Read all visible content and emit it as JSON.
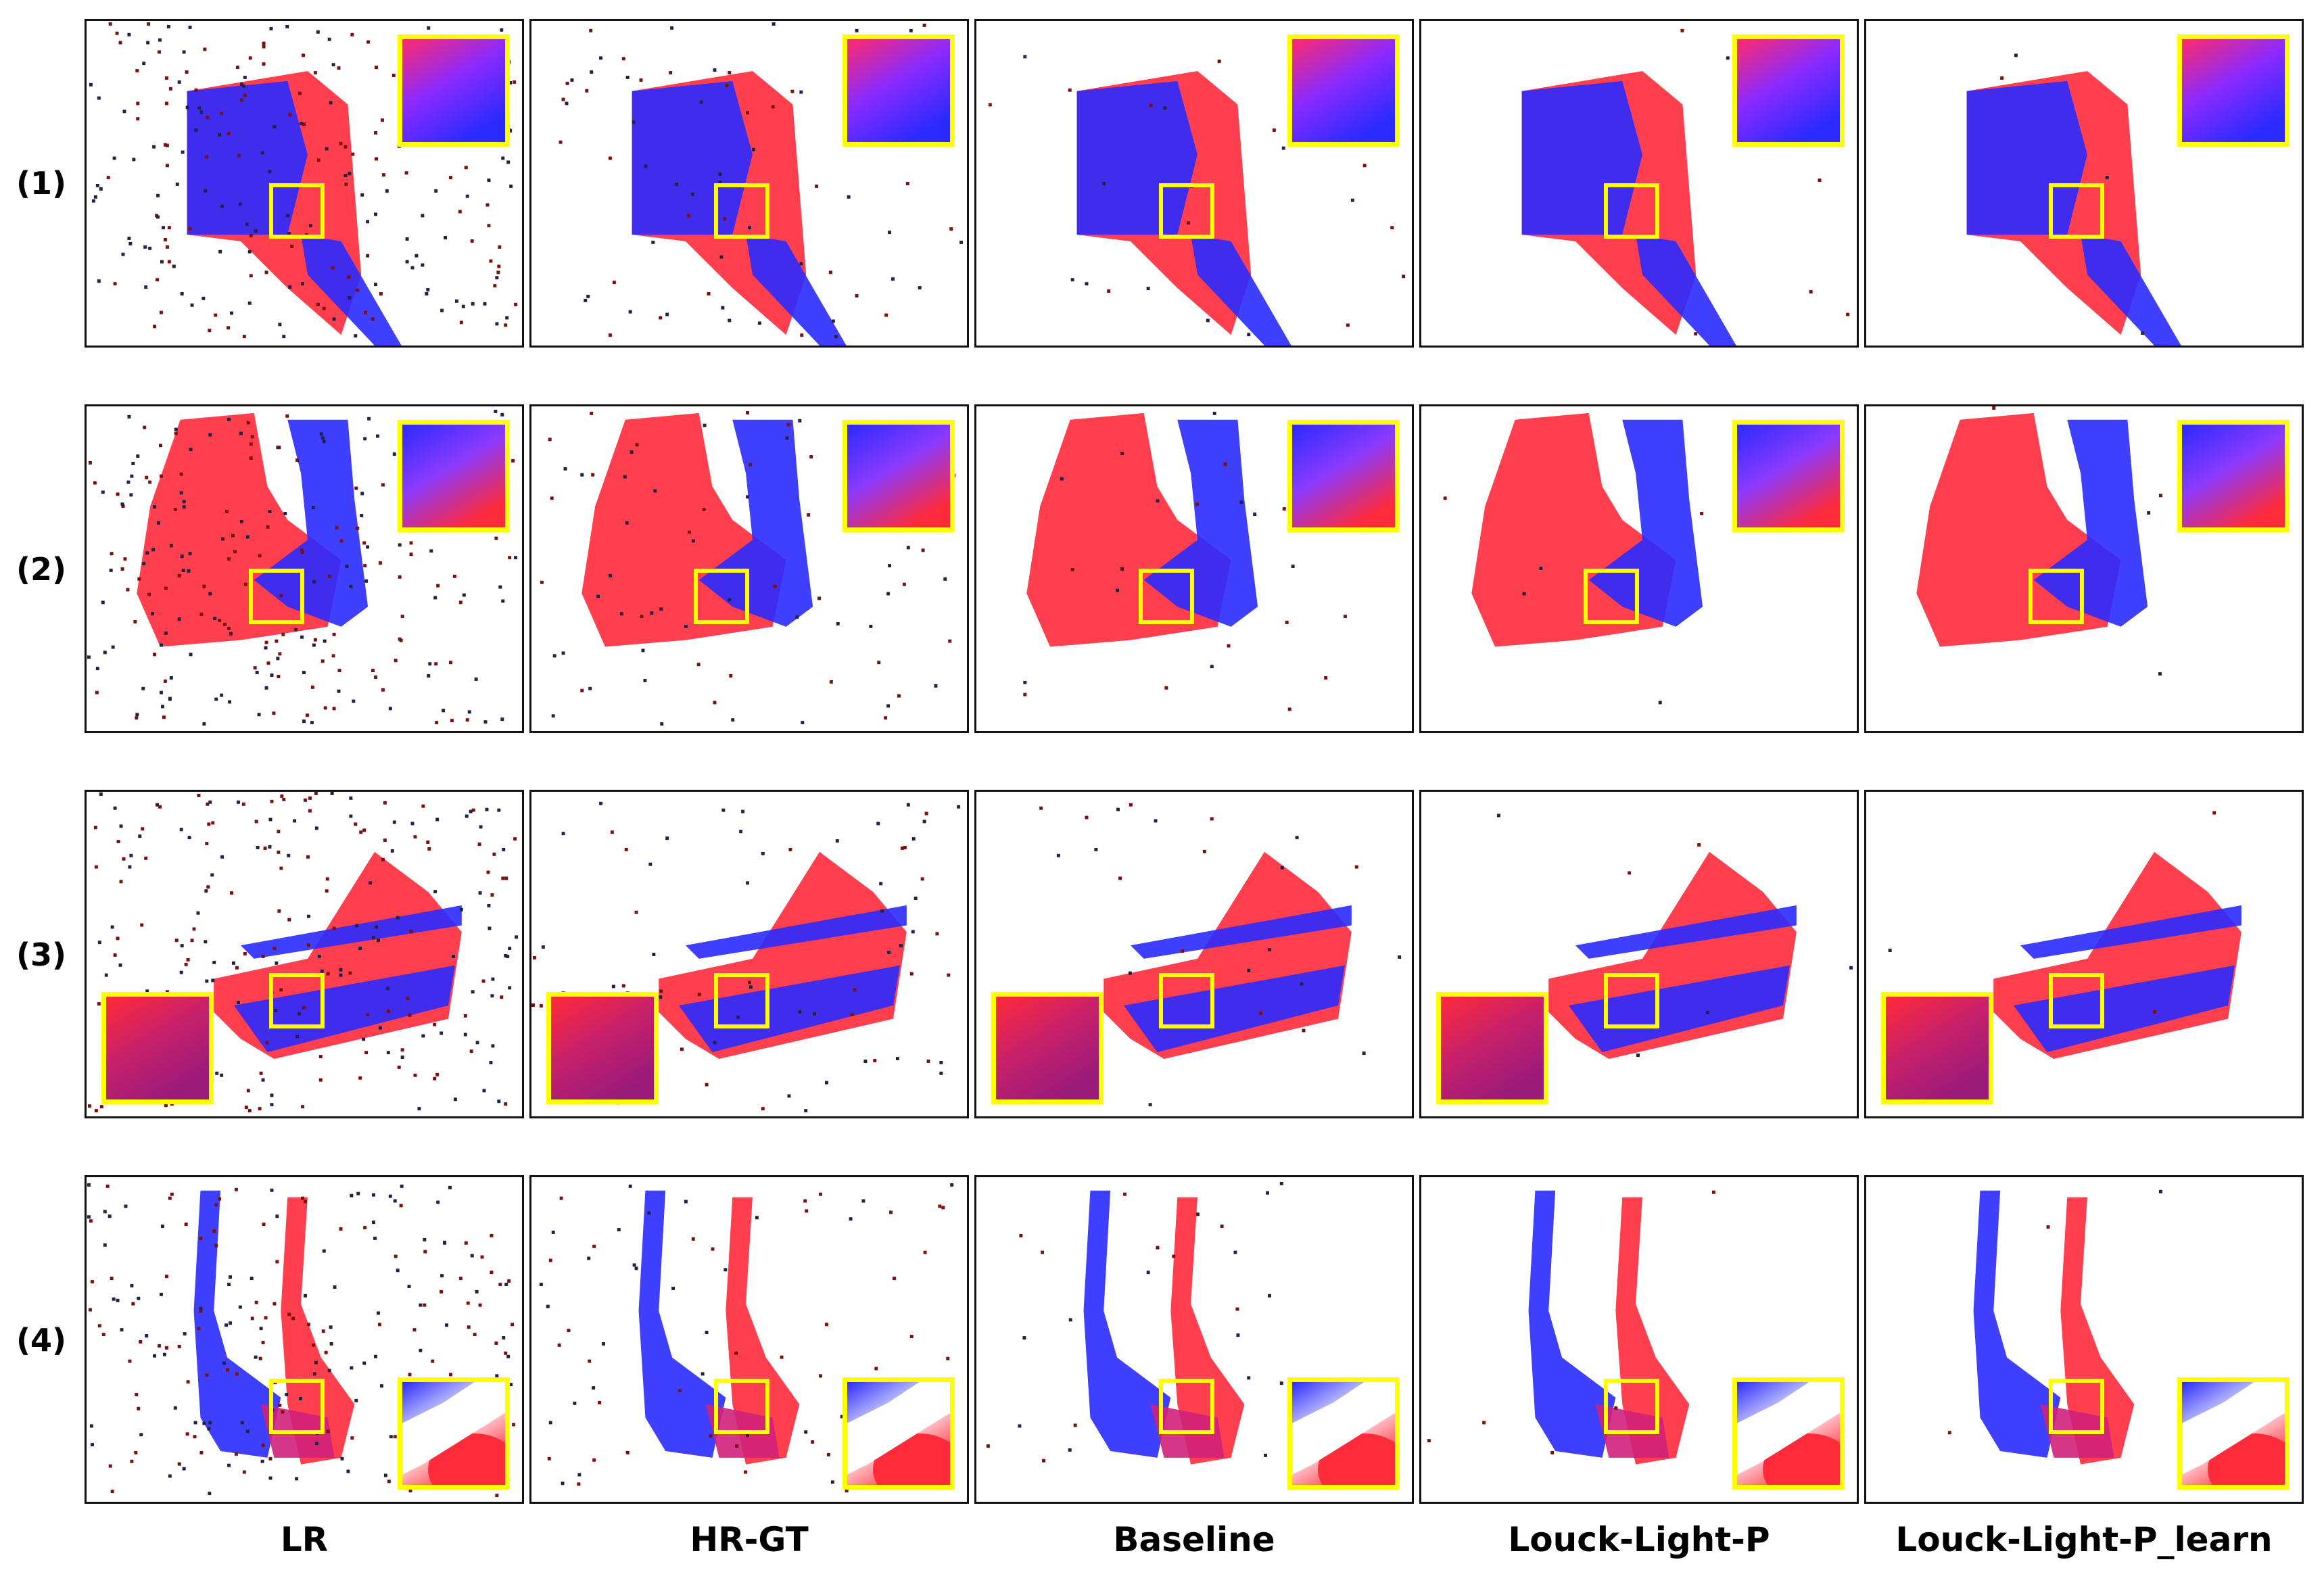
{
  "row_labels": [
    "(1)",
    "(2)",
    "(3)",
    "(4)"
  ],
  "column_labels": [
    "LR",
    "HR-GT",
    "Baseline",
    "Louck-Light-P",
    "Louck-Light-P_learn"
  ],
  "colors": {
    "red": "#ff2a3a",
    "blue": "#2a2aff",
    "dark_red": "#7a1010",
    "magenta": "#d0207a",
    "highlight": "#ffff00"
  }
}
